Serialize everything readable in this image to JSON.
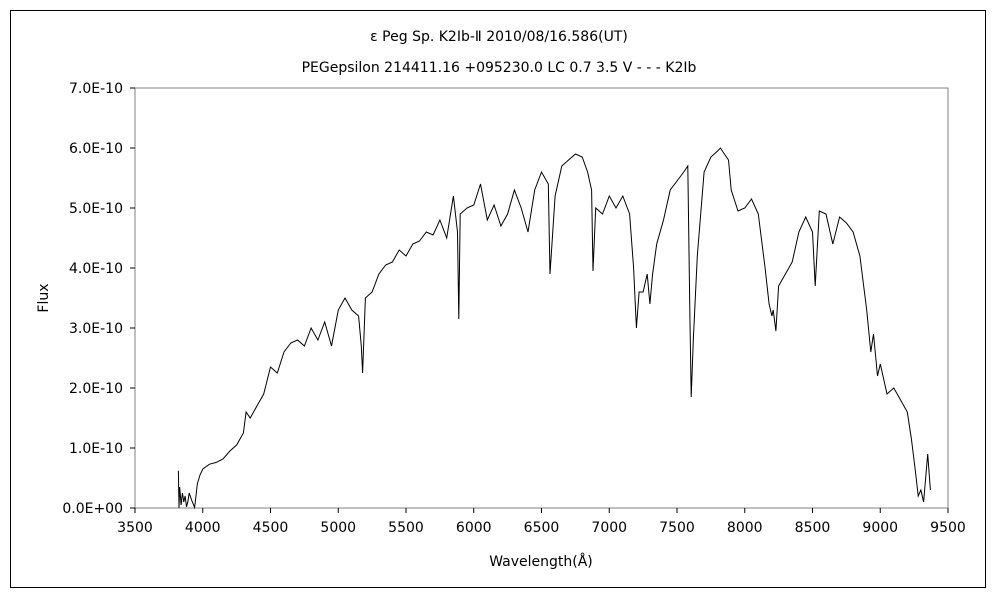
{
  "chart_data": {
    "type": "line",
    "title": "ε  Peg    Sp. K2Ⅰb-Ⅱ    2010/08/16.586(UT)",
    "subtitle": "PEGepsilon 214411.16 +095230.0 LC 0.7 3.5 V - - - K2Ⅰb",
    "xlabel": "Wavelength(Å)",
    "ylabel": "Flux",
    "xlim": [
      3500,
      9500
    ],
    "ylim": [
      0,
      7e-10
    ],
    "x_ticks": [
      "3500",
      "4000",
      "4500",
      "5000",
      "5500",
      "6000",
      "6500",
      "7000",
      "7500",
      "8000",
      "8500",
      "9000",
      "9500"
    ],
    "y_ticks": [
      "0.0E+00",
      "1.0E-10",
      "2.0E-10",
      "3.0E-10",
      "4.0E-10",
      "5.0E-10",
      "6.0E-10",
      "7.0E-10"
    ],
    "grid": false,
    "legend": "none",
    "line_color": "#000000",
    "series": [
      {
        "x": [
          3820,
          3825,
          3830,
          3840,
          3850,
          3860,
          3870,
          3880,
          3890,
          3900,
          3920,
          3940,
          3950,
          3960,
          3980,
          4000,
          4050,
          4100,
          4150,
          4200,
          4250,
          4300,
          4320,
          4350,
          4400,
          4450,
          4500,
          4550,
          4600,
          4650,
          4700,
          4750,
          4800,
          4850,
          4900,
          4950,
          5000,
          5050,
          5100,
          5150,
          5170,
          5180,
          5200,
          5250,
          5300,
          5350,
          5400,
          5450,
          5500,
          5550,
          5600,
          5650,
          5700,
          5750,
          5800,
          5850,
          5880,
          5890,
          5900,
          5950,
          6000,
          6050,
          6100,
          6150,
          6200,
          6250,
          6300,
          6350,
          6400,
          6450,
          6500,
          6550,
          6563,
          6600,
          6650,
          6700,
          6750,
          6800,
          6840,
          6870,
          6880,
          6900,
          6950,
          7000,
          7050,
          7100,
          7150,
          7180,
          7200,
          7220,
          7250,
          7280,
          7300,
          7320,
          7350,
          7400,
          7450,
          7500,
          7550,
          7580,
          7595,
          7605,
          7620,
          7650,
          7700,
          7750,
          7800,
          7820,
          7850,
          7880,
          7900,
          7950,
          8000,
          8050,
          8100,
          8150,
          8180,
          8200,
          8210,
          8230,
          8250,
          8300,
          8350,
          8400,
          8450,
          8500,
          8520,
          8550,
          8600,
          8650,
          8700,
          8750,
          8800,
          8850,
          8900,
          8930,
          8950,
          8980,
          9000,
          9050,
          9100,
          9150,
          9200,
          9230,
          9260,
          9280,
          9300,
          9320,
          9350,
          9370
        ],
        "y": [
          6.2e-11,
          0,
          3.5e-11,
          5e-12,
          2.5e-11,
          1e-11,
          2e-11,
          2e-12,
          1e-11,
          2.5e-11,
          1.2e-11,
          1e-12,
          2e-11,
          4e-11,
          5.5e-11,
          6.5e-11,
          7.3e-11,
          7.6e-11,
          8.2e-11,
          9.5e-11,
          1.05e-10,
          1.25e-10,
          1.6e-10,
          1.5e-10,
          1.7e-10,
          1.9e-10,
          2.35e-10,
          2.25e-10,
          2.6e-10,
          2.75e-10,
          2.8e-10,
          2.7e-10,
          3e-10,
          2.8e-10,
          3.1e-10,
          2.7e-10,
          3.3e-10,
          3.5e-10,
          3.3e-10,
          3.2e-10,
          2.7e-10,
          2.25e-10,
          3.5e-10,
          3.6e-10,
          3.9e-10,
          4.05e-10,
          4.1e-10,
          4.3e-10,
          4.2e-10,
          4.4e-10,
          4.45e-10,
          4.6e-10,
          4.55e-10,
          4.8e-10,
          4.5e-10,
          5.2e-10,
          4.6e-10,
          3.15e-10,
          4.9e-10,
          5e-10,
          5.05e-10,
          5.4e-10,
          4.8e-10,
          5.05e-10,
          4.7e-10,
          4.9e-10,
          5.3e-10,
          5e-10,
          4.6e-10,
          5.3e-10,
          5.6e-10,
          5.4e-10,
          3.9e-10,
          5.2e-10,
          5.7e-10,
          5.8e-10,
          5.9e-10,
          5.85e-10,
          5.6e-10,
          5.3e-10,
          3.95e-10,
          5e-10,
          4.9e-10,
          5.2e-10,
          5e-10,
          5.2e-10,
          4.9e-10,
          4e-10,
          3e-10,
          3.6e-10,
          3.6e-10,
          3.9e-10,
          3.4e-10,
          3.9e-10,
          4.4e-10,
          4.8e-10,
          5.3e-10,
          5.45e-10,
          5.6e-10,
          5.7e-10,
          3.2e-10,
          1.85e-10,
          2.8e-10,
          4.2e-10,
          5.6e-10,
          5.85e-10,
          5.95e-10,
          6e-10,
          5.9e-10,
          5.8e-10,
          5.3e-10,
          4.95e-10,
          5e-10,
          5.15e-10,
          4.9e-10,
          4e-10,
          3.4e-10,
          3.2e-10,
          3.3e-10,
          2.95e-10,
          3.7e-10,
          3.9e-10,
          4.1e-10,
          4.6e-10,
          4.85e-10,
          4.6e-10,
          3.7e-10,
          4.95e-10,
          4.9e-10,
          4.4e-10,
          4.85e-10,
          4.75e-10,
          4.6e-10,
          4.2e-10,
          3.3e-10,
          2.6e-10,
          2.9e-10,
          2.2e-10,
          2.4e-10,
          1.9e-10,
          2e-10,
          1.8e-10,
          1.6e-10,
          1.15e-10,
          6e-11,
          2e-11,
          3e-11,
          1e-11,
          9e-11,
          3e-11
        ]
      }
    ]
  }
}
